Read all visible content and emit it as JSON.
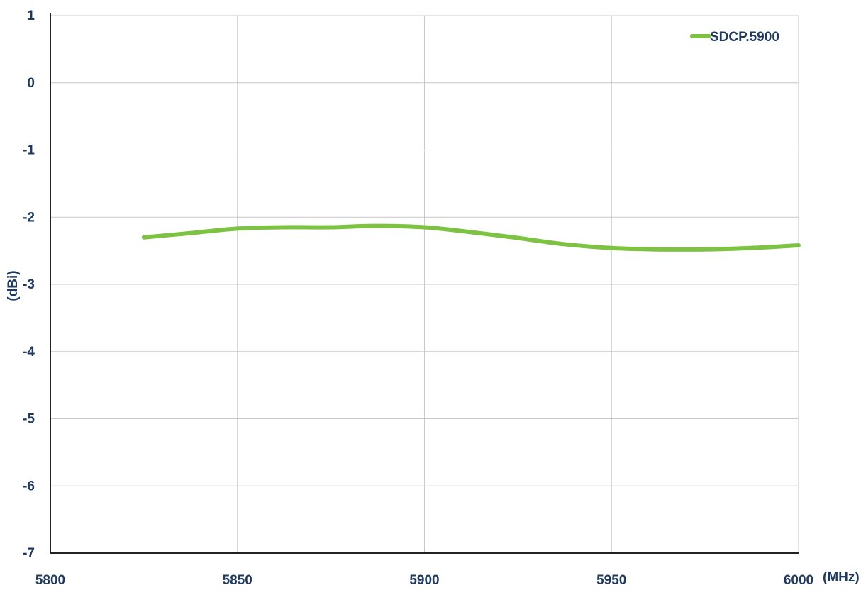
{
  "chart_data": {
    "type": "line",
    "title": "",
    "xlabel": "(MHz)",
    "ylabel": "(dBi)",
    "xlim": [
      5800,
      6000
    ],
    "ylim": [
      -7,
      1
    ],
    "x_ticks": [
      "5800",
      "5850",
      "5900",
      "5950",
      "6000"
    ],
    "y_ticks": [
      "1",
      "0",
      "-1",
      "-2",
      "-3",
      "-4",
      "-5",
      "-6",
      "-7"
    ],
    "grid": true,
    "legend_position": "top-right",
    "series": [
      {
        "name": "SDCP.5900",
        "color": "#7dc242",
        "points": [
          {
            "x": 5825,
            "y": -2.3
          },
          {
            "x": 5837,
            "y": -2.24
          },
          {
            "x": 5850,
            "y": -2.17
          },
          {
            "x": 5862,
            "y": -2.15
          },
          {
            "x": 5875,
            "y": -2.15
          },
          {
            "x": 5887,
            "y": -2.13
          },
          {
            "x": 5900,
            "y": -2.15
          },
          {
            "x": 5912,
            "y": -2.22
          },
          {
            "x": 5925,
            "y": -2.31
          },
          {
            "x": 5937,
            "y": -2.4
          },
          {
            "x": 5950,
            "y": -2.46
          },
          {
            "x": 5962,
            "y": -2.48
          },
          {
            "x": 5975,
            "y": -2.48
          },
          {
            "x": 5987,
            "y": -2.46
          },
          {
            "x": 6000,
            "y": -2.42
          }
        ]
      }
    ]
  },
  "colors": {
    "grid": "#c8c8c8",
    "axis": "#222222",
    "text": "#1f3a5f"
  }
}
